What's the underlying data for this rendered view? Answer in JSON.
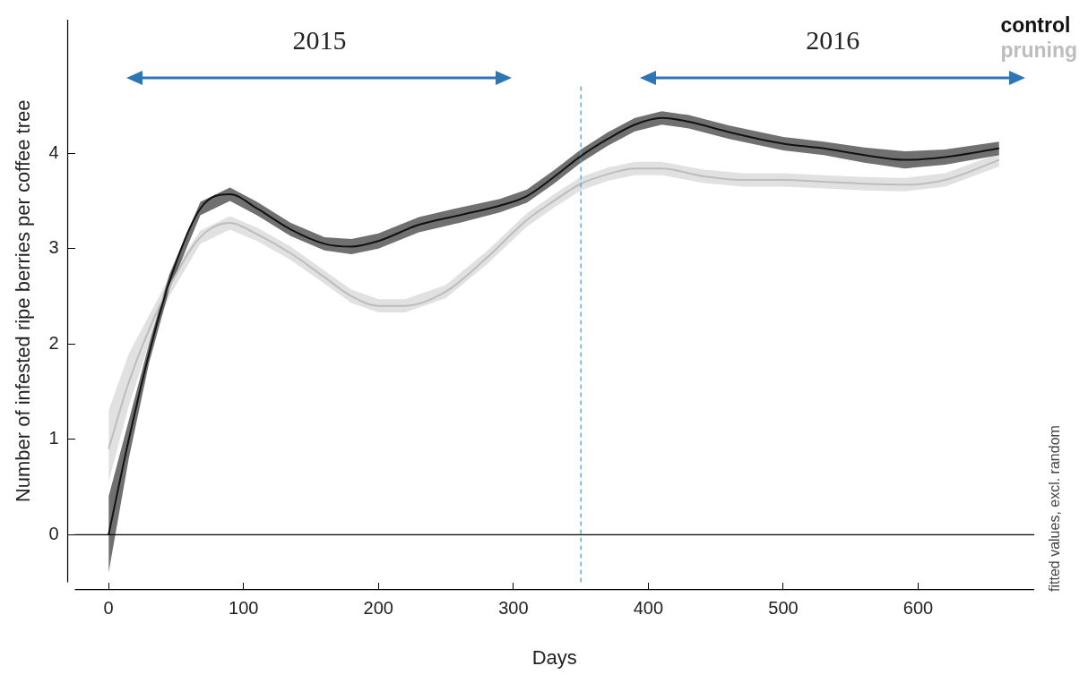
{
  "chart_data": {
    "type": "line",
    "xlabel": "Days",
    "ylabel": "Number of infested ripe berries per coffee tree",
    "xlim": [
      -25,
      686
    ],
    "ylim": [
      -0.5,
      5.4
    ],
    "xticks": [
      0,
      100,
      200,
      300,
      400,
      500,
      600
    ],
    "yticks": [
      0,
      1,
      2,
      3,
      4
    ],
    "grid": false,
    "legend": "top right",
    "marker": "none",
    "line_style": "solid",
    "ref_lines": [
      {
        "axis": "x",
        "value": 350,
        "color": "#5b9bd5",
        "line_style": "dashed"
      },
      {
        "axis": "y",
        "value": 0,
        "color": "#000000",
        "line_style": "solid"
      }
    ],
    "annotations": [
      "2015",
      "2016",
      "fitted values, excl. random"
    ],
    "series": [
      {
        "name": "control",
        "color": "#111111",
        "x": [
          0,
          15,
          30,
          45,
          68,
          90,
          110,
          135,
          160,
          180,
          200,
          230,
          260,
          290,
          310,
          330,
          350,
          370,
          390,
          410,
          430,
          460,
          500,
          530,
          560,
          590,
          620,
          660
        ],
        "values": [
          0,
          1.0,
          1.9,
          2.65,
          3.42,
          3.57,
          3.42,
          3.2,
          3.05,
          3.02,
          3.08,
          3.25,
          3.35,
          3.45,
          3.55,
          3.75,
          3.97,
          4.15,
          4.3,
          4.37,
          4.33,
          4.22,
          4.1,
          4.05,
          3.98,
          3.93,
          3.96,
          4.05
        ],
        "lower": [
          -0.4,
          0.8,
          1.8,
          2.57,
          3.35,
          3.5,
          3.35,
          3.13,
          2.98,
          2.94,
          3.0,
          3.17,
          3.27,
          3.38,
          3.48,
          3.68,
          3.9,
          4.08,
          4.23,
          4.3,
          4.26,
          4.15,
          4.03,
          3.98,
          3.9,
          3.84,
          3.88,
          3.98
        ],
        "upper": [
          0.4,
          1.2,
          2.0,
          2.73,
          3.49,
          3.64,
          3.49,
          3.27,
          3.12,
          3.1,
          3.16,
          3.33,
          3.43,
          3.52,
          3.62,
          3.82,
          4.04,
          4.22,
          4.37,
          4.44,
          4.4,
          4.29,
          4.17,
          4.12,
          4.06,
          4.02,
          4.04,
          4.12
        ]
      },
      {
        "name": "pruning",
        "color": "#bdbdbd",
        "x": [
          0,
          15,
          30,
          45,
          68,
          90,
          110,
          135,
          160,
          180,
          200,
          220,
          250,
          280,
          310,
          330,
          350,
          370,
          390,
          410,
          440,
          470,
          500,
          530,
          560,
          590,
          620,
          660
        ],
        "values": [
          0.9,
          1.6,
          2.15,
          2.6,
          3.12,
          3.27,
          3.15,
          2.95,
          2.7,
          2.5,
          2.4,
          2.4,
          2.55,
          2.9,
          3.3,
          3.5,
          3.68,
          3.78,
          3.84,
          3.84,
          3.76,
          3.72,
          3.72,
          3.7,
          3.68,
          3.67,
          3.72,
          3.93
        ],
        "lower": [
          0.55,
          1.35,
          2.0,
          2.5,
          3.05,
          3.2,
          3.08,
          2.88,
          2.63,
          2.43,
          2.33,
          2.33,
          2.48,
          2.83,
          3.23,
          3.43,
          3.61,
          3.71,
          3.77,
          3.77,
          3.69,
          3.65,
          3.65,
          3.63,
          3.61,
          3.6,
          3.65,
          3.86
        ],
        "upper": [
          1.3,
          1.9,
          2.3,
          2.7,
          3.19,
          3.34,
          3.22,
          3.02,
          2.77,
          2.57,
          2.47,
          2.47,
          2.62,
          2.97,
          3.37,
          3.57,
          3.75,
          3.85,
          3.91,
          3.91,
          3.83,
          3.79,
          3.79,
          3.77,
          3.75,
          3.74,
          3.79,
          4.0
        ]
      }
    ]
  }
}
